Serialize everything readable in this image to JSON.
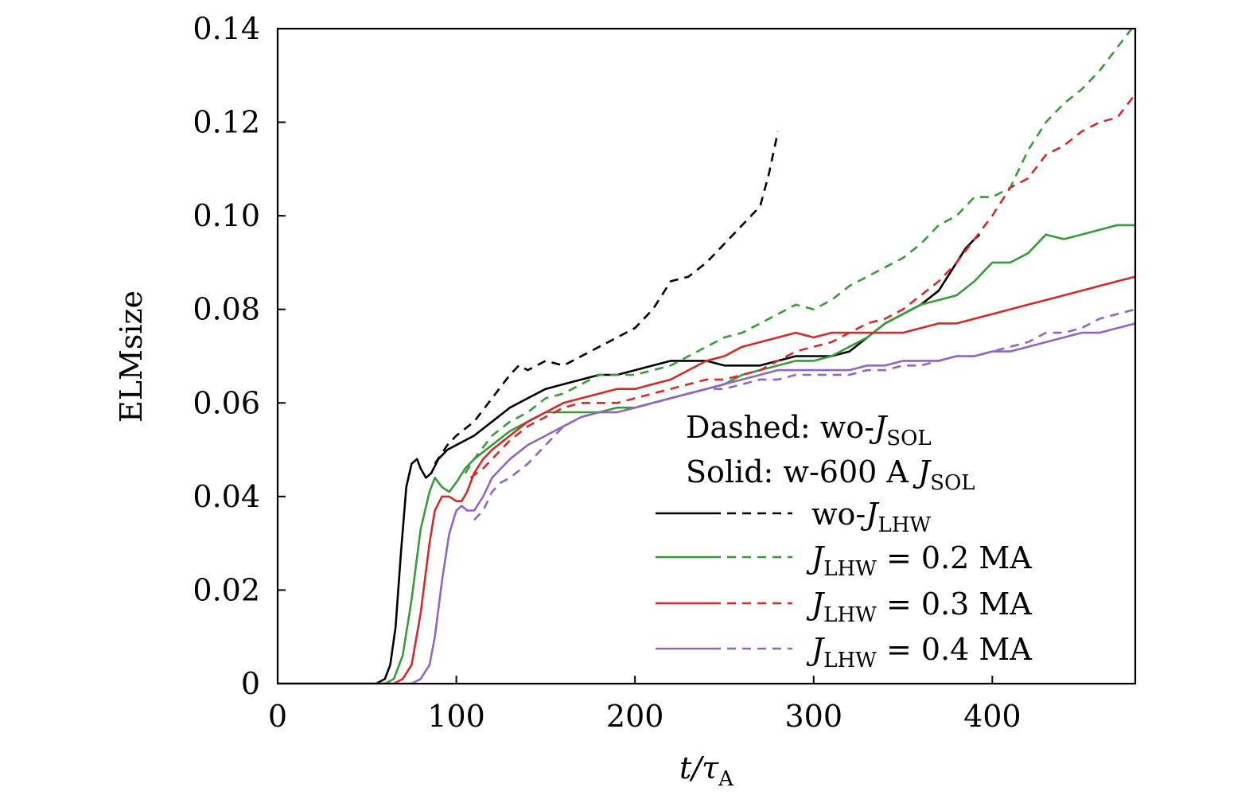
{
  "chart_data": {
    "type": "line",
    "xlabel": "t/τA",
    "xlabel_parts": {
      "main": "t/τ",
      "sub": "A"
    },
    "ylabel": "ELMsize",
    "xlim": [
      0,
      480
    ],
    "ylim": [
      0,
      0.14
    ],
    "xticks": [
      0,
      100,
      200,
      300,
      400
    ],
    "xtick_labels": [
      "0",
      "100",
      "200",
      "300",
      "400"
    ],
    "yticks": [
      0,
      0.02,
      0.04,
      0.06,
      0.08,
      0.1,
      0.12,
      0.14
    ],
    "ytick_labels": [
      "0",
      "0.02",
      "0.04",
      "0.06",
      "0.08",
      "0.10",
      "0.12",
      "0.14"
    ],
    "grid": false,
    "annotations": {
      "dashed_note": {
        "prefix": "Dashed: wo-",
        "var": "J",
        "sub": "SOL"
      },
      "solid_note": {
        "prefix": "Solid: w-600 A ",
        "var": "J",
        "sub": "SOL"
      }
    },
    "legend": [
      {
        "id": "black",
        "color": "#000000",
        "prefix": "wo-",
        "var": "J",
        "sub": "LHW",
        "suffix": ""
      },
      {
        "id": "green",
        "color": "#3a9a3a",
        "prefix": "",
        "var": "J",
        "sub": "LHW",
        "suffix": " = 0.2 MA"
      },
      {
        "id": "red",
        "color": "#d42a2a",
        "prefix": "",
        "var": "J",
        "sub": "LHW",
        "suffix": " = 0.3 MA"
      },
      {
        "id": "purple",
        "color": "#9067c0",
        "prefix": "",
        "var": "J",
        "sub": "LHW",
        "suffix": " = 0.4 MA"
      }
    ],
    "series": [
      {
        "name": "wo-JLHW solid (w-600 A JSOL)",
        "color": "#000000",
        "dash": false,
        "x": [
          0,
          55,
          60,
          63,
          66,
          69,
          72,
          75,
          78,
          80,
          83,
          86,
          90,
          95,
          100,
          110,
          120,
          130,
          140,
          150,
          160,
          170,
          180,
          190,
          200,
          210,
          220,
          230,
          240,
          250,
          260,
          270,
          280,
          290,
          300,
          310,
          320,
          330,
          340,
          350,
          360,
          370,
          375,
          380,
          385,
          390,
          393
        ],
        "y": [
          0,
          0,
          0.001,
          0.004,
          0.012,
          0.028,
          0.042,
          0.047,
          0.048,
          0.046,
          0.044,
          0.045,
          0.048,
          0.05,
          0.051,
          0.053,
          0.056,
          0.059,
          0.061,
          0.063,
          0.064,
          0.065,
          0.066,
          0.066,
          0.067,
          0.068,
          0.069,
          0.069,
          0.069,
          0.068,
          0.068,
          0.068,
          0.069,
          0.07,
          0.07,
          0.07,
          0.071,
          0.074,
          0.077,
          0.079,
          0.081,
          0.084,
          0.087,
          0.09,
          0.093,
          0.095,
          0.096
        ]
      },
      {
        "name": "wo-JLHW dashed (wo-JSOL)",
        "color": "#000000",
        "dash": true,
        "x": [
          88,
          95,
          100,
          110,
          120,
          130,
          135,
          140,
          150,
          160,
          170,
          180,
          190,
          200,
          210,
          215,
          220,
          230,
          240,
          250,
          260,
          265,
          270,
          275,
          280
        ],
        "y": [
          0.047,
          0.051,
          0.053,
          0.056,
          0.061,
          0.066,
          0.068,
          0.067,
          0.069,
          0.068,
          0.07,
          0.072,
          0.074,
          0.076,
          0.08,
          0.083,
          0.086,
          0.087,
          0.09,
          0.094,
          0.098,
          0.1,
          0.102,
          0.109,
          0.118
        ]
      },
      {
        "name": "JLHW = 0.2 MA solid (w-600 A JSOL)",
        "color": "#3a9a3a",
        "dash": false,
        "x": [
          0,
          30,
          60,
          65,
          70,
          75,
          80,
          85,
          88,
          92,
          96,
          100,
          105,
          110,
          120,
          130,
          140,
          150,
          160,
          170,
          180,
          190,
          200,
          210,
          220,
          230,
          240,
          250,
          260,
          270,
          280,
          290,
          300,
          310,
          320,
          330,
          340,
          350,
          360,
          370,
          380,
          390,
          400,
          410,
          420,
          430,
          440,
          450,
          460,
          470,
          480
        ],
        "y": [
          0,
          0,
          0,
          0.001,
          0.006,
          0.018,
          0.033,
          0.041,
          0.044,
          0.042,
          0.041,
          0.043,
          0.046,
          0.048,
          0.051,
          0.054,
          0.056,
          0.058,
          0.058,
          0.058,
          0.058,
          0.059,
          0.059,
          0.06,
          0.061,
          0.062,
          0.063,
          0.064,
          0.066,
          0.067,
          0.068,
          0.069,
          0.069,
          0.07,
          0.072,
          0.074,
          0.077,
          0.079,
          0.081,
          0.082,
          0.083,
          0.086,
          0.09,
          0.09,
          0.092,
          0.096,
          0.095,
          0.096,
          0.097,
          0.098,
          0.098
        ]
      },
      {
        "name": "JLHW = 0.2 MA dashed (wo-JSOL)",
        "color": "#3a9a3a",
        "dash": true,
        "x": [
          105,
          110,
          120,
          130,
          140,
          150,
          160,
          170,
          180,
          190,
          200,
          210,
          220,
          230,
          240,
          250,
          260,
          270,
          280,
          290,
          300,
          310,
          320,
          330,
          340,
          350,
          360,
          370,
          380,
          390,
          400,
          410,
          420,
          430,
          440,
          450,
          460,
          470,
          478
        ],
        "y": [
          0.045,
          0.048,
          0.053,
          0.056,
          0.058,
          0.061,
          0.062,
          0.064,
          0.066,
          0.066,
          0.066,
          0.067,
          0.068,
          0.07,
          0.072,
          0.074,
          0.075,
          0.077,
          0.079,
          0.081,
          0.08,
          0.082,
          0.085,
          0.087,
          0.089,
          0.091,
          0.094,
          0.098,
          0.1,
          0.104,
          0.104,
          0.106,
          0.114,
          0.12,
          0.124,
          0.127,
          0.131,
          0.136,
          0.14
        ]
      },
      {
        "name": "JLHW = 0.3 MA solid (w-600 A JSOL)",
        "color": "#d42a2a",
        "dash": false,
        "x": [
          0,
          65,
          70,
          75,
          80,
          85,
          88,
          92,
          96,
          100,
          103,
          106,
          110,
          115,
          120,
          130,
          140,
          150,
          160,
          170,
          180,
          190,
          200,
          210,
          220,
          230,
          240,
          250,
          260,
          270,
          280,
          290,
          300,
          310,
          320,
          330,
          340,
          350,
          360,
          370,
          380,
          390,
          400,
          410,
          420,
          430,
          440,
          450,
          460,
          470,
          480
        ],
        "y": [
          0,
          0,
          0.001,
          0.004,
          0.015,
          0.03,
          0.037,
          0.04,
          0.04,
          0.039,
          0.039,
          0.041,
          0.045,
          0.048,
          0.05,
          0.053,
          0.056,
          0.058,
          0.06,
          0.061,
          0.062,
          0.063,
          0.063,
          0.064,
          0.065,
          0.067,
          0.069,
          0.07,
          0.072,
          0.073,
          0.074,
          0.075,
          0.074,
          0.075,
          0.075,
          0.075,
          0.075,
          0.075,
          0.076,
          0.077,
          0.077,
          0.078,
          0.079,
          0.08,
          0.081,
          0.082,
          0.083,
          0.084,
          0.085,
          0.086,
          0.087
        ]
      },
      {
        "name": "JLHW = 0.3 MA dashed (wo-JSOL)",
        "color": "#d42a2a",
        "dash": true,
        "x": [
          108,
          115,
          120,
          130,
          140,
          150,
          160,
          170,
          180,
          190,
          200,
          210,
          220,
          230,
          240,
          250,
          260,
          270,
          280,
          290,
          300,
          310,
          320,
          330,
          340,
          350,
          360,
          370,
          380,
          390,
          400,
          410,
          420,
          430,
          440,
          450,
          460,
          470,
          480
        ],
        "y": [
          0.044,
          0.046,
          0.048,
          0.052,
          0.055,
          0.057,
          0.059,
          0.06,
          0.06,
          0.06,
          0.061,
          0.062,
          0.063,
          0.064,
          0.065,
          0.065,
          0.066,
          0.067,
          0.069,
          0.071,
          0.072,
          0.073,
          0.075,
          0.077,
          0.078,
          0.08,
          0.083,
          0.086,
          0.09,
          0.095,
          0.1,
          0.106,
          0.108,
          0.113,
          0.115,
          0.118,
          0.12,
          0.121,
          0.126
        ]
      },
      {
        "name": "JLHW = 0.4 MA solid (w-600 A JSOL)",
        "color": "#9067c0",
        "dash": false,
        "x": [
          0,
          75,
          80,
          85,
          88,
          92,
          96,
          100,
          103,
          106,
          110,
          115,
          120,
          130,
          140,
          150,
          160,
          170,
          180,
          190,
          200,
          210,
          220,
          230,
          240,
          250,
          260,
          270,
          280,
          290,
          300,
          310,
          320,
          330,
          340,
          350,
          360,
          370,
          380,
          390,
          400,
          410,
          420,
          430,
          440,
          450,
          460,
          470,
          480
        ],
        "y": [
          0,
          0,
          0.001,
          0.004,
          0.01,
          0.022,
          0.032,
          0.037,
          0.038,
          0.037,
          0.037,
          0.04,
          0.044,
          0.048,
          0.051,
          0.053,
          0.055,
          0.057,
          0.058,
          0.058,
          0.059,
          0.06,
          0.061,
          0.062,
          0.063,
          0.064,
          0.065,
          0.066,
          0.067,
          0.067,
          0.067,
          0.067,
          0.067,
          0.068,
          0.068,
          0.069,
          0.069,
          0.069,
          0.07,
          0.07,
          0.071,
          0.071,
          0.072,
          0.073,
          0.074,
          0.075,
          0.075,
          0.076,
          0.077
        ]
      },
      {
        "name": "JLHW = 0.4 MA dashed (wo-JSOL)",
        "color": "#9067c0",
        "dash": true,
        "x": [
          110,
          115,
          120,
          125,
          130,
          140,
          150,
          160,
          170,
          180,
          190,
          200,
          210,
          220,
          230,
          240,
          250,
          260,
          270,
          280,
          290,
          300,
          310,
          320,
          330,
          340,
          350,
          360,
          370,
          380,
          390,
          400,
          410,
          420,
          430,
          440,
          450,
          460,
          470,
          480
        ],
        "y": [
          0.035,
          0.037,
          0.041,
          0.043,
          0.044,
          0.047,
          0.051,
          0.055,
          0.057,
          0.058,
          0.058,
          0.059,
          0.06,
          0.061,
          0.062,
          0.063,
          0.063,
          0.064,
          0.065,
          0.065,
          0.066,
          0.066,
          0.066,
          0.066,
          0.067,
          0.067,
          0.068,
          0.068,
          0.069,
          0.07,
          0.07,
          0.071,
          0.072,
          0.073,
          0.075,
          0.075,
          0.076,
          0.078,
          0.079,
          0.08
        ]
      }
    ]
  }
}
